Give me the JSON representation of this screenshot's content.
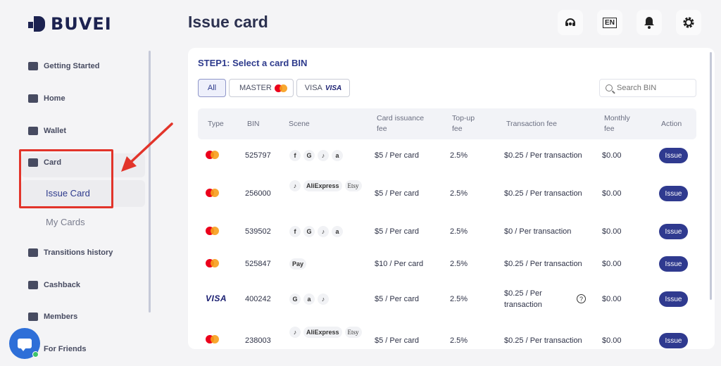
{
  "brand": {
    "name": "BUVEI"
  },
  "header": {
    "title": "Issue card",
    "lang": "EN",
    "icons": [
      "support-icon",
      "language-icon",
      "bell-icon",
      "gear-icon"
    ]
  },
  "sidebar": {
    "items": [
      {
        "label": "Getting Started",
        "icon": "signpost-icon"
      },
      {
        "label": "Home",
        "icon": "home-icon"
      },
      {
        "label": "Wallet",
        "icon": "wallet-icon"
      },
      {
        "label": "Card",
        "icon": "card-icon"
      },
      {
        "label": "Transitions history",
        "icon": "history-icon"
      },
      {
        "label": "Cashback",
        "icon": "cashback-icon"
      },
      {
        "label": "Members",
        "icon": "members-icon"
      },
      {
        "label": "For Friends",
        "icon": "friends-icon"
      }
    ],
    "card_sub": [
      {
        "label": "Issue Card"
      },
      {
        "label": "My Cards"
      }
    ]
  },
  "main": {
    "step_title": "STEP1: Select a card BIN",
    "filters": {
      "all": "All",
      "master": "MASTER",
      "visa": "VISA",
      "visa_logo": "VISA"
    },
    "search": {
      "placeholder": "Search BIN"
    },
    "columns": {
      "type": "Type",
      "bin": "BIN",
      "scene": "Scene",
      "issuance_1": "Card issuance",
      "issuance_2": "fee",
      "topup_1": "Top-up",
      "topup_2": "fee",
      "txn": "Transaction fee",
      "monthly_1": "Monthly",
      "monthly_2": "fee",
      "action": "Action"
    },
    "rows": [
      {
        "type": "mastercard",
        "bin": "525797",
        "scene": [
          "f",
          "G",
          "♪",
          "a"
        ],
        "issuance": "$5 / Per card",
        "topup": "2.5%",
        "txn": "$0.25 / Per transaction",
        "monthly": "$0.00",
        "action": "Issue"
      },
      {
        "type": "mastercard",
        "bin": "256000",
        "scene": [
          "♪",
          "AliExpress",
          "Etsy"
        ],
        "issuance": "$5 / Per card",
        "topup": "2.5%",
        "txn": "$0.25 / Per transaction",
        "monthly": "$0.00",
        "action": "Issue"
      },
      {
        "type": "mastercard",
        "bin": "539502",
        "scene": [
          "f",
          "G",
          "♪",
          "a"
        ],
        "issuance": "$5 / Per card",
        "topup": "2.5%",
        "txn": "$0 / Per transaction",
        "monthly": "$0.00",
        "action": "Issue"
      },
      {
        "type": "mastercard",
        "bin": "525847",
        "scene": [
          "Pay"
        ],
        "issuance": "$10 / Per card",
        "topup": "2.5%",
        "txn": "$0.25 / Per transaction",
        "monthly": "$0.00",
        "action": "Issue"
      },
      {
        "type": "visa",
        "type_label": "VISA",
        "bin": "400242",
        "scene": [
          "G",
          "a",
          "♪"
        ],
        "issuance": "$5 / Per card",
        "topup": "2.5%",
        "txn_1": "$0.25 / Per",
        "txn_2": "transaction",
        "help": "?",
        "monthly": "$0.00",
        "action": "Issue"
      },
      {
        "type": "mastercard",
        "bin": "238003",
        "scene": [
          "♪",
          "AliExpress",
          "Etsy"
        ],
        "issuance": "$5 / Per card",
        "topup": "2.5%",
        "txn": "$0.25 / Per transaction",
        "monthly": "$0.00",
        "action": "Issue"
      }
    ]
  },
  "colors": {
    "accent": "#2f3a8f",
    "annotation": "#e2342a",
    "chat": "#2e6fd8"
  }
}
